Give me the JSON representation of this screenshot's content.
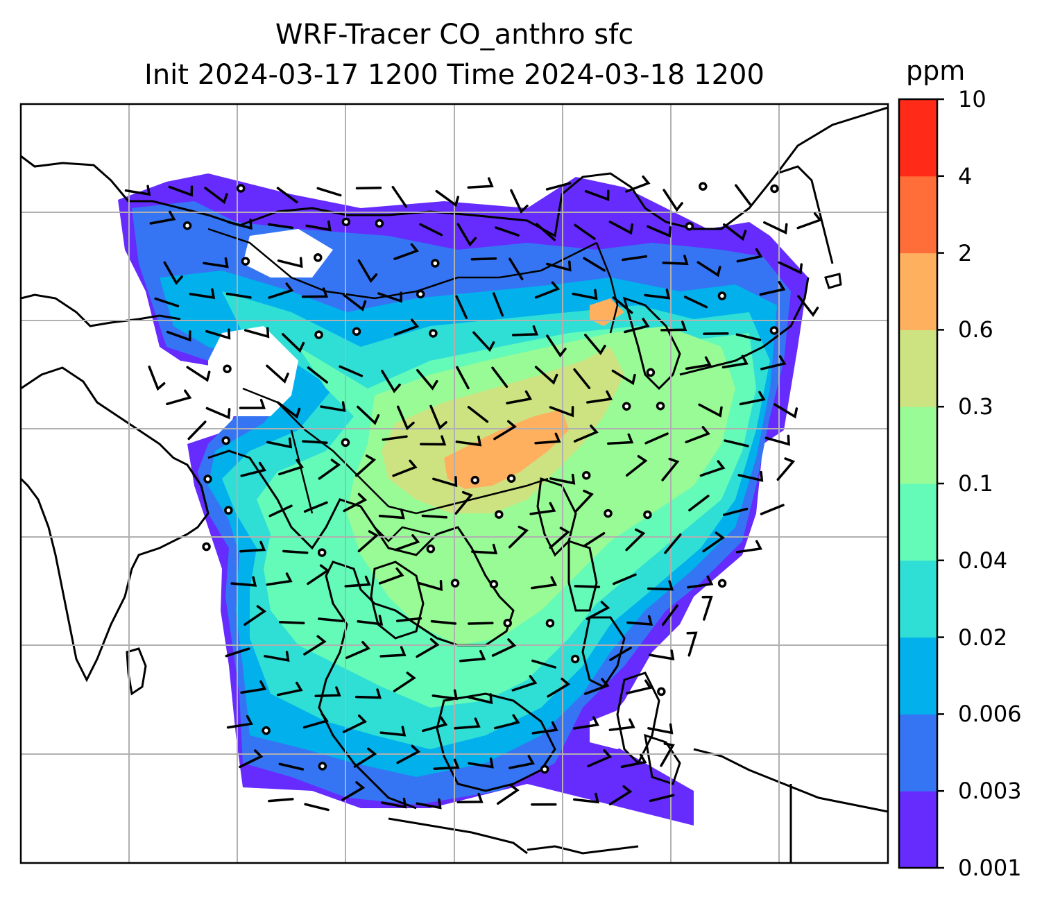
{
  "title_line1": "WRF-Tracer CO_anthro sfc",
  "title_line2": "Init 2024-03-17 1200 Time 2024-03-18 1200",
  "colorbar": {
    "units": "ppm",
    "tick_labels": [
      "0.001",
      "0.003",
      "0.006",
      "0.02",
      "0.04",
      "0.1",
      "0.3",
      "0.6",
      "2",
      "4",
      "10"
    ],
    "colors": [
      "#652cfd",
      "#3575f4",
      "#02b0eb",
      "#2fdfd6",
      "#64fab8",
      "#99fb96",
      "#cde280",
      "#feb05f",
      "#ff6e39",
      "#ff2a17"
    ]
  },
  "chart_data": {
    "type": "heatmap",
    "description_of_field": "CO_anthro surface concentration (ppm)",
    "levels_ppm": [
      0.001,
      0.003,
      0.006,
      0.02,
      0.04,
      0.1,
      0.3,
      0.6,
      2,
      4,
      10
    ],
    "grid": true,
    "legend": "colorbar at right",
    "overlays": [
      "coastlines",
      "country borders",
      "wind barbs",
      "calm-wind circles"
    ]
  }
}
